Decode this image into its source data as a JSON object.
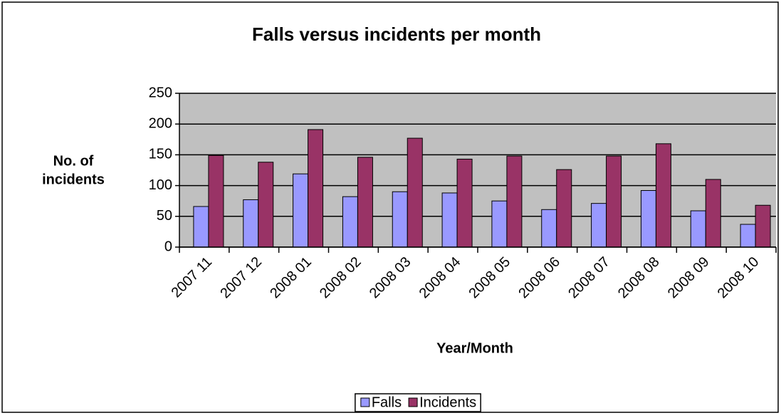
{
  "chart_data": {
    "type": "bar",
    "title": "Falls versus incidents per month",
    "y_label": [
      "No. of",
      "incidents"
    ],
    "x_label": "Year/Month",
    "categories": [
      "2007 11",
      "2007 12",
      "2008 01",
      "2008 02",
      "2008 03",
      "2008 04",
      "2008 05",
      "2008 06",
      "2008 07",
      "2008 08",
      "2008 09",
      "2008 10"
    ],
    "series": [
      {
        "name": "Falls",
        "color": "#9999ff",
        "values": [
          66,
          77,
          119,
          82,
          90,
          88,
          75,
          61,
          71,
          92,
          59,
          37
        ]
      },
      {
        "name": "Incidents",
        "color": "#993366",
        "values": [
          149,
          138,
          191,
          146,
          177,
          143,
          148,
          126,
          148,
          168,
          110,
          68
        ]
      }
    ],
    "ylim": [
      0,
      250
    ],
    "yticks": [
      0,
      50,
      100,
      150,
      200,
      250
    ],
    "grid": true,
    "legend": "bottom"
  }
}
